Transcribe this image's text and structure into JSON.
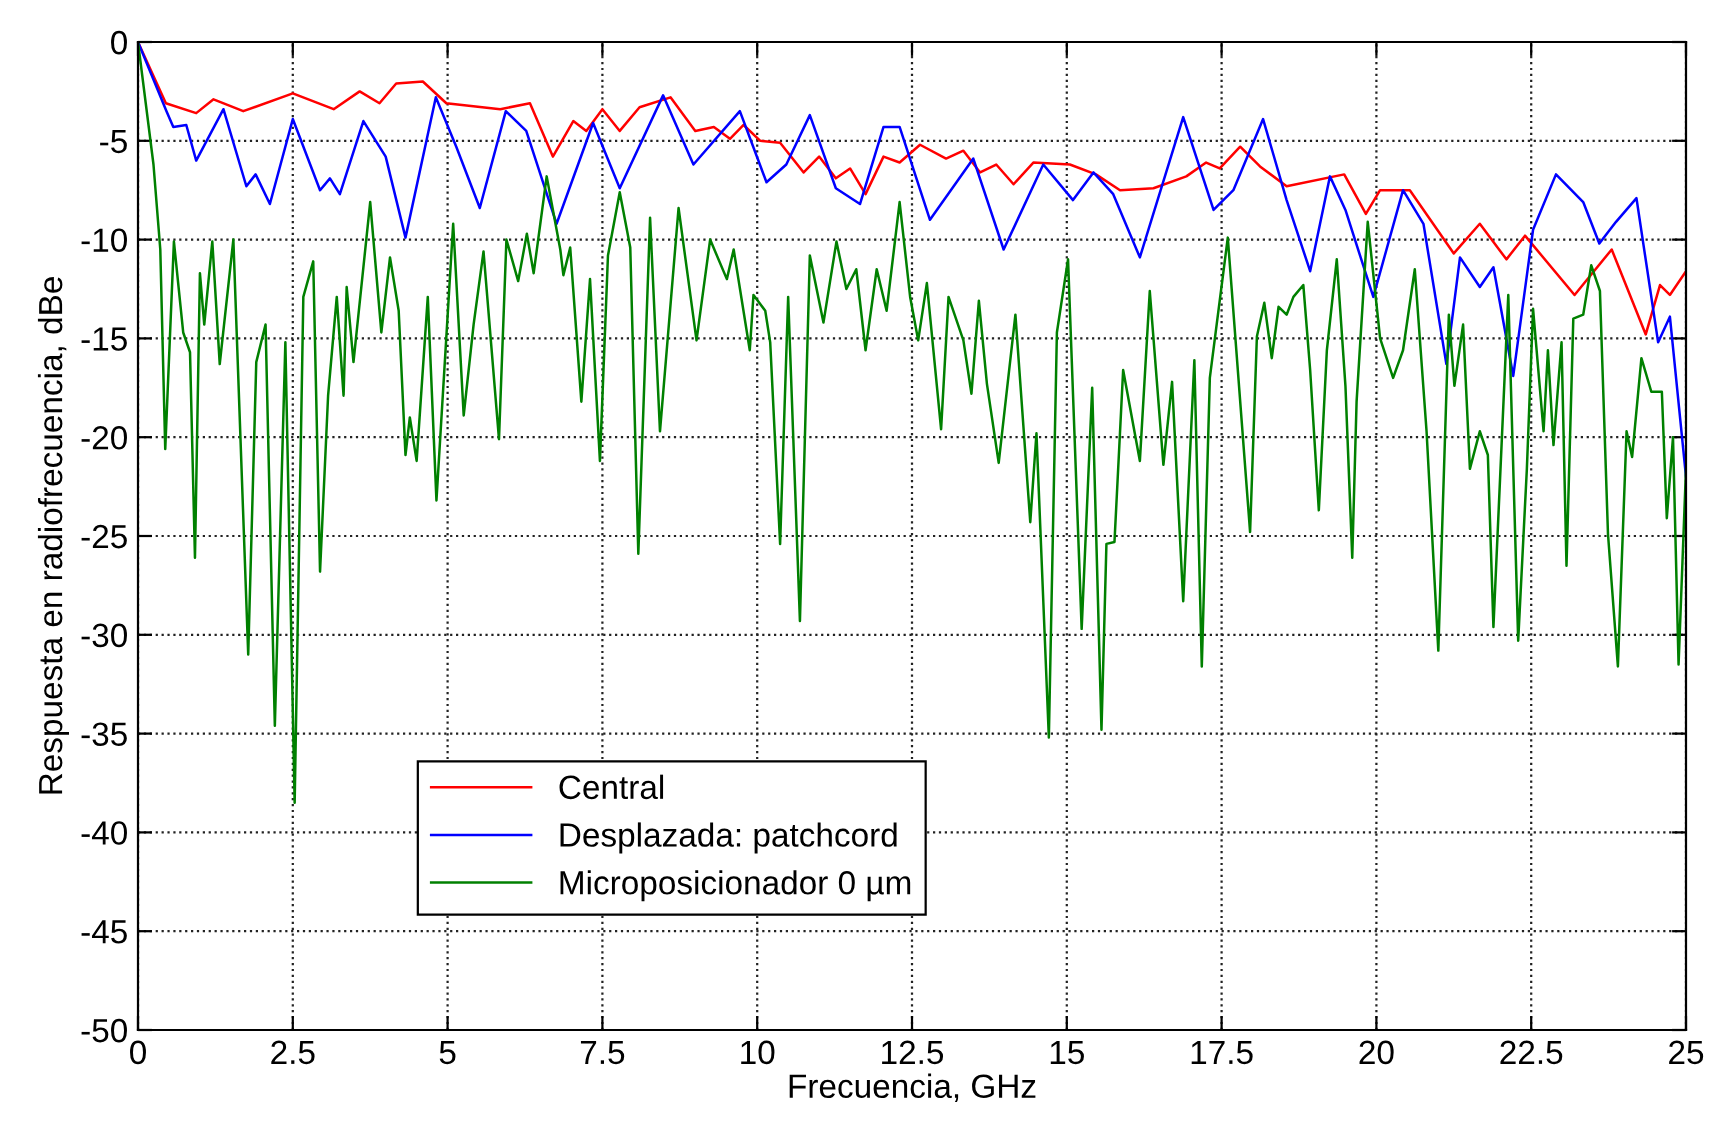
{
  "chart_data": {
    "type": "line",
    "xlabel": "Frecuencia, GHz",
    "ylabel": "Respuesta en radiofrecuencia, dBe",
    "xlim": [
      0,
      25
    ],
    "xticks": [
      0,
      2.5,
      5,
      7.5,
      10,
      12.5,
      15,
      17.5,
      20,
      22.5,
      25
    ],
    "ylim": [
      -50,
      0
    ],
    "yticks": [
      -50,
      -45,
      -40,
      -35,
      -30,
      -25,
      -20,
      -15,
      -10,
      -5,
      0
    ],
    "grid": true,
    "legend": "bottom left",
    "line_style": "solid",
    "marker": "none",
    "series": [
      {
        "name": "Central",
        "color": "#ff0000",
        "x": [
          0,
          0.45,
          0.94,
          1.22,
          1.7,
          2.5,
          3.16,
          3.58,
          3.9,
          4.17,
          4.6,
          4.98,
          5.85,
          6.33,
          6.7,
          7.03,
          7.24,
          7.5,
          7.78,
          8.1,
          8.6,
          9.0,
          9.3,
          9.56,
          9.78,
          10.05,
          10.37,
          10.75,
          11.0,
          11.27,
          11.5,
          11.75,
          12.04,
          12.3,
          12.63,
          13.05,
          13.33,
          13.6,
          13.86,
          14.14,
          14.46,
          15.05,
          15.47,
          15.86,
          16.4,
          16.93,
          17.25,
          17.47,
          17.8,
          18.12,
          18.55,
          19.48,
          19.83,
          20.06,
          20.54,
          21.25,
          21.67,
          22.1,
          22.4,
          23.2,
          23.8,
          24.35,
          24.58,
          24.74,
          25
        ],
        "values": [
          0,
          -3.1,
          -3.6,
          -2.9,
          -3.5,
          -2.6,
          -3.4,
          -2.5,
          -3.1,
          -2.1,
          -2.0,
          -3.1,
          -3.4,
          -3.1,
          -5.8,
          -4.0,
          -4.5,
          -3.4,
          -4.5,
          -3.3,
          -2.8,
          -4.5,
          -4.3,
          -4.9,
          -4.2,
          -5.0,
          -5.1,
          -6.6,
          -5.8,
          -6.9,
          -6.4,
          -7.7,
          -5.8,
          -6.1,
          -5.2,
          -5.9,
          -5.5,
          -6.6,
          -6.2,
          -7.2,
          -6.1,
          -6.2,
          -6.7,
          -7.5,
          -7.4,
          -6.8,
          -6.1,
          -6.4,
          -5.3,
          -6.3,
          -7.3,
          -6.7,
          -8.7,
          -7.5,
          -7.5,
          -10.7,
          -9.2,
          -11.0,
          -9.8,
          -12.8,
          -10.5,
          -14.8,
          -12.3,
          -12.8,
          -11.6
        ]
      },
      {
        "name": "Desplazada: patchcord",
        "color": "#0000ff",
        "x": [
          0,
          0.46,
          0.57,
          0.78,
          0.94,
          1.38,
          1.75,
          1.9,
          2.13,
          2.5,
          2.94,
          3.1,
          3.26,
          3.64,
          4.0,
          4.32,
          4.81,
          5.14,
          5.52,
          5.94,
          6.27,
          6.76,
          7.35,
          7.78,
          8.48,
          8.97,
          9.72,
          10.15,
          10.47,
          10.85,
          11.27,
          11.66,
          12.04,
          12.3,
          12.79,
          13.49,
          13.98,
          14.62,
          15.1,
          15.43,
          15.75,
          16.18,
          16.88,
          17.37,
          17.69,
          18.17,
          18.55,
          18.93,
          19.25,
          19.5,
          19.95,
          20.43,
          20.76,
          21.13,
          21.35,
          21.67,
          21.89,
          22.21,
          22.53,
          22.9,
          23.34,
          23.6,
          23.87,
          24.2,
          24.55,
          24.74,
          25
        ],
        "values": [
          0,
          -3.5,
          -4.3,
          -4.2,
          -6.0,
          -3.4,
          -7.3,
          -6.7,
          -8.2,
          -3.9,
          -7.5,
          -6.9,
          -7.7,
          -4.0,
          -5.8,
          -9.9,
          -2.8,
          -5.3,
          -8.4,
          -3.5,
          -4.5,
          -9.2,
          -4.1,
          -7.4,
          -2.7,
          -6.2,
          -3.5,
          -7.1,
          -6.2,
          -3.7,
          -7.4,
          -8.2,
          -4.3,
          -4.3,
          -9.0,
          -5.9,
          -10.5,
          -6.2,
          -8.0,
          -6.6,
          -7.7,
          -10.9,
          -3.8,
          -8.5,
          -7.5,
          -3.9,
          -8.0,
          -11.6,
          -6.8,
          -8.5,
          -12.9,
          -7.5,
          -9.2,
          -16.3,
          -10.9,
          -12.4,
          -11.4,
          -16.9,
          -9.5,
          -6.7,
          -8.1,
          -10.2,
          -9.1,
          -7.9,
          -15.2,
          -13.9,
          -22.0
        ]
      },
      {
        "name": "Microposicionador 0 µm",
        "color": "#008000",
        "x": [
          0,
          0.25,
          0.36,
          0.44,
          0.58,
          0.73,
          0.84,
          0.92,
          1.0,
          1.07,
          1.2,
          1.32,
          1.54,
          1.78,
          1.91,
          2.06,
          2.21,
          2.38,
          2.53,
          2.67,
          2.83,
          2.94,
          3.07,
          3.21,
          3.32,
          3.37,
          3.48,
          3.75,
          3.93,
          4.07,
          4.21,
          4.32,
          4.39,
          4.5,
          4.68,
          4.82,
          5.09,
          5.26,
          5.42,
          5.58,
          5.83,
          5.95,
          6.14,
          6.28,
          6.39,
          6.6,
          6.82,
          6.87,
          6.98,
          7.16,
          7.3,
          7.46,
          7.59,
          7.78,
          7.95,
          8.08,
          8.27,
          8.43,
          8.73,
          9.02,
          9.24,
          9.51,
          9.62,
          9.88,
          9.94,
          10.13,
          10.21,
          10.37,
          10.5,
          10.69,
          10.85,
          11.07,
          11.28,
          11.44,
          11.6,
          11.75,
          11.93,
          12.09,
          12.3,
          12.47,
          12.6,
          12.74,
          12.97,
          13.09,
          13.33,
          13.46,
          13.58,
          13.71,
          13.9,
          14.17,
          14.41,
          14.51,
          14.71,
          14.84,
          15.02,
          15.24,
          15.41,
          15.56,
          15.64,
          15.77,
          15.91,
          16.18,
          16.34,
          16.56,
          16.7,
          16.88,
          17.06,
          17.18,
          17.31,
          17.6,
          17.96,
          18.07,
          18.19,
          18.31,
          18.42,
          18.55,
          18.66,
          18.82,
          18.93,
          19.07,
          19.2,
          19.36,
          19.5,
          19.61,
          19.68,
          19.86,
          20.06,
          20.27,
          20.43,
          20.62,
          20.81,
          21.0,
          21.17,
          21.26,
          21.4,
          21.51,
          21.67,
          21.8,
          21.89,
          22.13,
          22.29,
          22.43,
          22.53,
          22.7,
          22.77,
          22.86,
          22.99,
          23.07,
          23.18,
          23.34,
          23.47,
          23.61,
          23.74,
          23.9,
          24.04,
          24.13,
          24.28,
          24.44,
          24.61,
          24.69,
          24.79,
          24.88,
          25
        ],
        "values": [
          0,
          -6.2,
          -10.5,
          -20.6,
          -10.1,
          -14.7,
          -15.7,
          -26.1,
          -11.7,
          -14.3,
          -10.1,
          -16.3,
          -10.0,
          -31.0,
          -16.2,
          -14.3,
          -34.6,
          -15.2,
          -38.5,
          -12.9,
          -11.1,
          -26.8,
          -17.9,
          -12.9,
          -17.9,
          -12.4,
          -16.2,
          -8.1,
          -14.7,
          -10.9,
          -13.6,
          -20.9,
          -19.0,
          -21.2,
          -12.9,
          -23.2,
          -9.2,
          -18.9,
          -14.3,
          -10.6,
          -20.1,
          -10.0,
          -12.1,
          -9.7,
          -11.7,
          -6.8,
          -10.5,
          -11.8,
          -10.4,
          -18.2,
          -12.0,
          -21.2,
          -10.8,
          -7.6,
          -10.4,
          -25.9,
          -8.9,
          -19.7,
          -8.4,
          -15.1,
          -10.0,
          -12.0,
          -10.5,
          -15.6,
          -12.8,
          -13.6,
          -15.2,
          -25.4,
          -12.9,
          -29.3,
          -10.8,
          -14.2,
          -10.1,
          -12.5,
          -11.5,
          -15.6,
          -11.5,
          -13.6,
          -8.1,
          -12.9,
          -15.1,
          -12.2,
          -19.6,
          -12.9,
          -15.1,
          -17.8,
          -13.1,
          -17.3,
          -21.3,
          -13.8,
          -24.3,
          -19.8,
          -35.2,
          -14.7,
          -11.0,
          -29.7,
          -17.5,
          -34.8,
          -25.4,
          -25.3,
          -16.6,
          -21.2,
          -12.6,
          -21.4,
          -17.2,
          -28.3,
          -16.1,
          -31.6,
          -17.0,
          -9.9,
          -24.8,
          -14.9,
          -13.2,
          -16.0,
          -13.4,
          -13.8,
          -12.9,
          -12.3,
          -16.6,
          -23.7,
          -15.6,
          -11.0,
          -17.4,
          -26.1,
          -18.2,
          -9.1,
          -15.0,
          -17.0,
          -15.6,
          -11.5,
          -19.7,
          -30.8,
          -13.8,
          -17.4,
          -14.3,
          -21.6,
          -19.7,
          -20.9,
          -29.6,
          -12.8,
          -30.3,
          -21.6,
          -13.5,
          -19.7,
          -15.6,
          -20.4,
          -15.2,
          -26.5,
          -14.0,
          -13.8,
          -11.3,
          -12.6,
          -24.9,
          -31.6,
          -19.7,
          -21.0,
          -16.0,
          -17.7,
          -17.7,
          -24.1,
          -20.0,
          -31.5,
          -21.6
        ]
      }
    ]
  }
}
